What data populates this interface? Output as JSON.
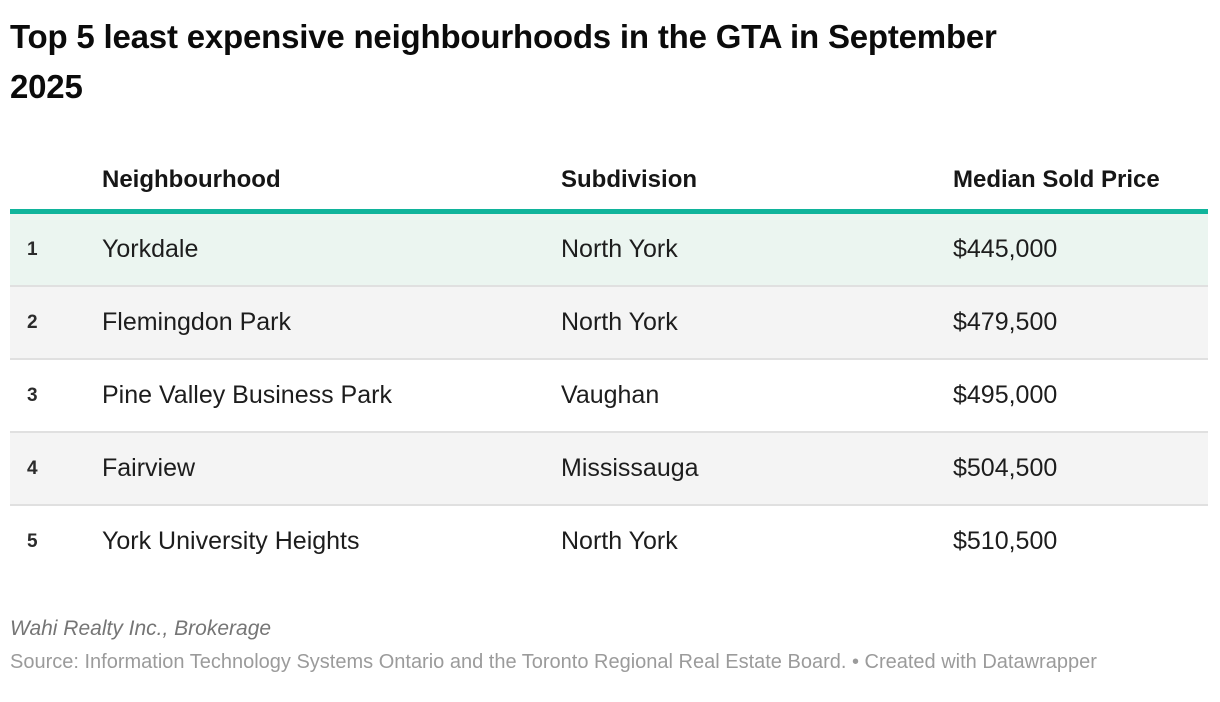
{
  "title": "Top 5 least expensive neighbourhoods in the GTA in September 2025",
  "chart_data": {
    "type": "table",
    "title": "Top 5 least expensive neighbourhoods in the GTA in September 2025",
    "columns": [
      "Neighbourhood",
      "Subdivision",
      "Median Sold Price"
    ],
    "rows": [
      {
        "rank": "1",
        "neighbourhood": "Yorkdale",
        "subdivision": "North York",
        "price": "$445,000",
        "highlight": true
      },
      {
        "rank": "2",
        "neighbourhood": "Flemingdon Park",
        "subdivision": "North York",
        "price": "$479,500",
        "highlight": false
      },
      {
        "rank": "3",
        "neighbourhood": "Pine Valley Business Park",
        "subdivision": "Vaughan",
        "price": "$495,000",
        "highlight": false
      },
      {
        "rank": "4",
        "neighbourhood": "Fairview",
        "subdivision": "Mississauga",
        "price": "$504,500",
        "highlight": false
      },
      {
        "rank": "5",
        "neighbourhood": "York University Heights",
        "subdivision": "North York",
        "price": "$510,500",
        "highlight": false
      }
    ],
    "price_values": [
      445000,
      479500,
      495000,
      504500,
      510500
    ],
    "legend_position": "none",
    "grid": "row-separators"
  },
  "footer": {
    "byline": "Wahi Realty Inc., Brokerage",
    "source": "Source: Information Technology Systems Ontario and the Toronto Regional Real Estate Board. • Created with Datawrapper"
  },
  "colors": {
    "accent_teal": "#10b49b",
    "highlight_row_bg": "#ebf5f0",
    "stripe_row_bg": "#f4f4f4",
    "separator": "#e0e0e0"
  }
}
